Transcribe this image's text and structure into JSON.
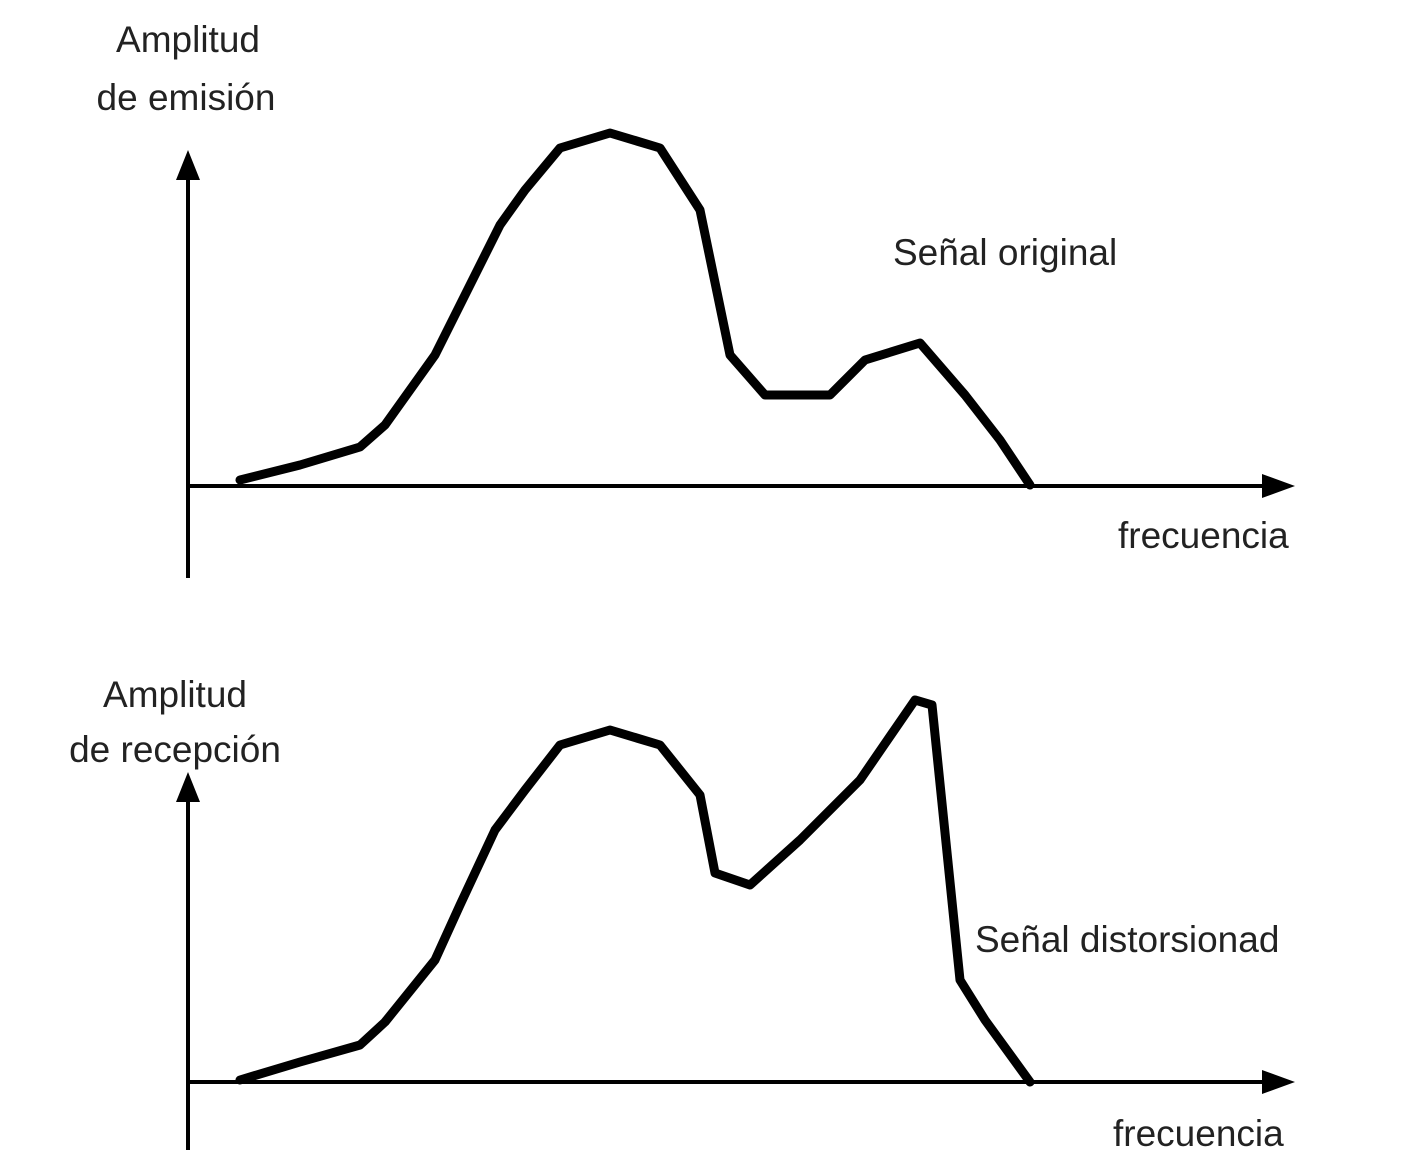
{
  "panels": [
    {
      "y_label": [
        "Amplitud",
        "de emisión"
      ],
      "x_label": "frecuencia",
      "curve_label": "Señal original"
    },
    {
      "y_label": [
        "Amplitud",
        "de recepción"
      ],
      "x_label": "frecuencia",
      "curve_label": "Señal distorsionad"
    }
  ]
}
